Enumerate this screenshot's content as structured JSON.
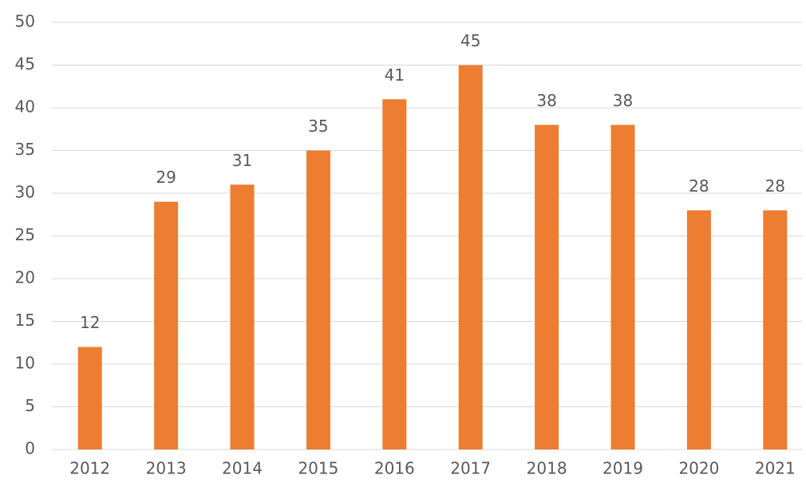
{
  "chart_data": {
    "type": "bar",
    "categories": [
      "2012",
      "2013",
      "2014",
      "2015",
      "2016",
      "2017",
      "2018",
      "2019",
      "2020",
      "2021"
    ],
    "values": [
      12,
      29,
      31,
      35,
      41,
      45,
      38,
      38,
      28,
      28
    ],
    "color": "#ed7d31",
    "ylim": [
      0,
      50
    ],
    "yticks": [
      0,
      5,
      10,
      15,
      20,
      25,
      30,
      35,
      40,
      45,
      50
    ],
    "grid": true,
    "data_labels": true
  }
}
